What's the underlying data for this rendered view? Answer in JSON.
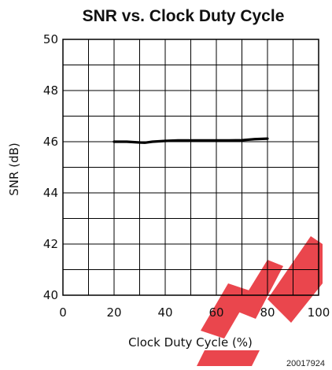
{
  "chart_data": {
    "type": "line",
    "title": "SNR vs. Clock Duty Cycle",
    "xlabel": "Clock Duty Cycle (%)",
    "ylabel": "SNR (dB)",
    "xlim": [
      0,
      100
    ],
    "ylim": [
      40,
      50
    ],
    "x_ticks": [
      0,
      20,
      40,
      60,
      80,
      100
    ],
    "y_ticks": [
      40,
      42,
      44,
      46,
      48,
      50
    ],
    "x_grid_step": 10,
    "y_grid_step": 1,
    "grid": true,
    "series": [
      {
        "x": [
          20,
          25,
          30,
          32,
          35,
          40,
          45,
          50,
          55,
          60,
          65,
          70,
          75,
          80
        ],
        "y": [
          46.0,
          46.0,
          45.97,
          45.96,
          46.0,
          46.03,
          46.05,
          46.05,
          46.05,
          46.05,
          46.05,
          46.06,
          46.1,
          46.12
        ]
      }
    ],
    "figure_id": "20017924",
    "colors": {
      "line": "#000000",
      "grid": "#000000",
      "watermark": "#e8323a"
    }
  }
}
